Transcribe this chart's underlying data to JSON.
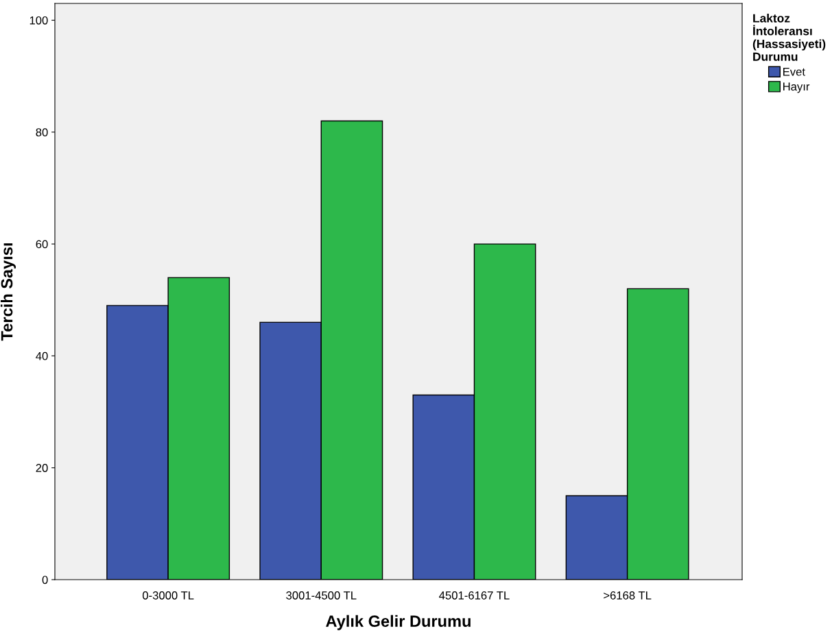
{
  "chart_data": {
    "type": "bar",
    "xlabel": "Aylık Gelir Durumu",
    "ylabel": "Tercih Sayısı",
    "legend_title": "Laktoz İntoleransı (Hassasiyeti) Durumu",
    "categories": [
      "0-3000 TL",
      "3001-4500 TL",
      "4501-6167 TL",
      ">6168 TL"
    ],
    "series": [
      {
        "name": "Evet",
        "color": "#3e58ac",
        "values": [
          49,
          46,
          33,
          15
        ]
      },
      {
        "name": "Hayır",
        "color": "#2db84b",
        "values": [
          54,
          82,
          60,
          52
        ]
      }
    ],
    "ylim": [
      0,
      103
    ],
    "yticks": [
      0,
      20,
      40,
      60,
      80,
      100
    ],
    "grid": false,
    "legend": "top right"
  }
}
